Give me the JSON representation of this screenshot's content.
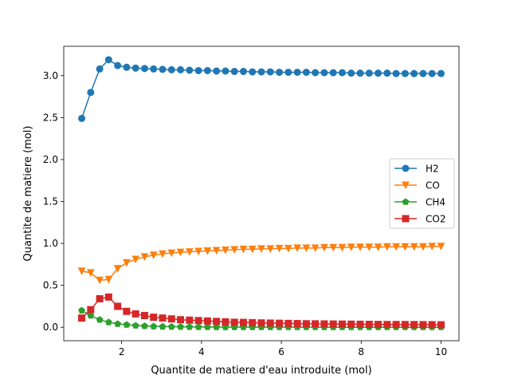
{
  "chart_data": {
    "type": "line",
    "title": "",
    "xlabel": "Quantite de matiere d'eau introduite (mol)",
    "ylabel": "Quantite de matiere (mol)",
    "xlim": [
      0.55,
      10.45
    ],
    "ylim": [
      -0.16,
      3.35
    ],
    "xticks": [
      2,
      4,
      6,
      8,
      10
    ],
    "xtick_labels": [
      "2",
      "4",
      "6",
      "8",
      "10"
    ],
    "yticks": [
      0.0,
      0.5,
      1.0,
      1.5,
      2.0,
      2.5,
      3.0
    ],
    "ytick_labels": [
      "0.0",
      "0.5",
      "1.0",
      "1.5",
      "2.0",
      "2.5",
      "3.0"
    ],
    "grid": false,
    "legend_position": "center-right",
    "x": [
      1.0,
      1.225,
      1.45,
      1.675,
      1.9,
      2.125,
      2.35,
      2.575,
      2.8,
      3.025,
      3.25,
      3.475,
      3.7,
      3.925,
      4.15,
      4.375,
      4.6,
      4.825,
      5.05,
      5.275,
      5.5,
      5.725,
      5.95,
      6.175,
      6.4,
      6.625,
      6.85,
      7.075,
      7.3,
      7.525,
      7.75,
      7.975,
      8.2,
      8.425,
      8.65,
      8.875,
      9.1,
      9.325,
      9.55,
      9.775,
      10.0
    ],
    "series": [
      {
        "name": "H2",
        "color": "#1f77b4",
        "marker": "circle",
        "values": [
          2.49,
          2.8,
          3.08,
          3.19,
          3.12,
          3.1,
          3.09,
          3.085,
          3.08,
          3.075,
          3.07,
          3.07,
          3.065,
          3.06,
          3.06,
          3.055,
          3.055,
          3.05,
          3.05,
          3.045,
          3.045,
          3.045,
          3.04,
          3.04,
          3.04,
          3.04,
          3.035,
          3.035,
          3.035,
          3.035,
          3.03,
          3.03,
          3.03,
          3.03,
          3.03,
          3.025,
          3.025,
          3.025,
          3.025,
          3.025,
          3.025
        ]
      },
      {
        "name": "CO",
        "color": "#ff7f0e",
        "marker": "triangle-down",
        "values": [
          0.67,
          0.65,
          0.56,
          0.57,
          0.7,
          0.77,
          0.81,
          0.84,
          0.86,
          0.875,
          0.885,
          0.895,
          0.9,
          0.905,
          0.91,
          0.915,
          0.92,
          0.925,
          0.93,
          0.93,
          0.935,
          0.935,
          0.94,
          0.94,
          0.945,
          0.945,
          0.945,
          0.95,
          0.95,
          0.95,
          0.955,
          0.955,
          0.955,
          0.955,
          0.96,
          0.96,
          0.96,
          0.96,
          0.96,
          0.965,
          0.965
        ]
      },
      {
        "name": "CH4",
        "color": "#2ca02c",
        "marker": "pentagon",
        "values": [
          0.2,
          0.14,
          0.09,
          0.06,
          0.04,
          0.03,
          0.02,
          0.015,
          0.01,
          0.008,
          0.006,
          0.005,
          0.004,
          0.003,
          0.003,
          0.002,
          0.002,
          0.002,
          0.002,
          0.001,
          0.001,
          0.001,
          0.001,
          0.001,
          0.001,
          0.001,
          0.001,
          0.001,
          0.001,
          0.001,
          0.001,
          0.001,
          0.001,
          0.001,
          0.001,
          0.001,
          0.001,
          0.001,
          0.001,
          0.001,
          0.001
        ]
      },
      {
        "name": "CO2",
        "color": "#d62728",
        "marker": "square",
        "values": [
          0.11,
          0.21,
          0.34,
          0.36,
          0.25,
          0.19,
          0.16,
          0.14,
          0.12,
          0.11,
          0.1,
          0.09,
          0.085,
          0.08,
          0.075,
          0.07,
          0.065,
          0.06,
          0.058,
          0.055,
          0.052,
          0.05,
          0.048,
          0.046,
          0.044,
          0.042,
          0.041,
          0.04,
          0.039,
          0.038,
          0.037,
          0.036,
          0.035,
          0.034,
          0.033,
          0.033,
          0.032,
          0.032,
          0.031,
          0.031,
          0.03
        ]
      }
    ]
  }
}
